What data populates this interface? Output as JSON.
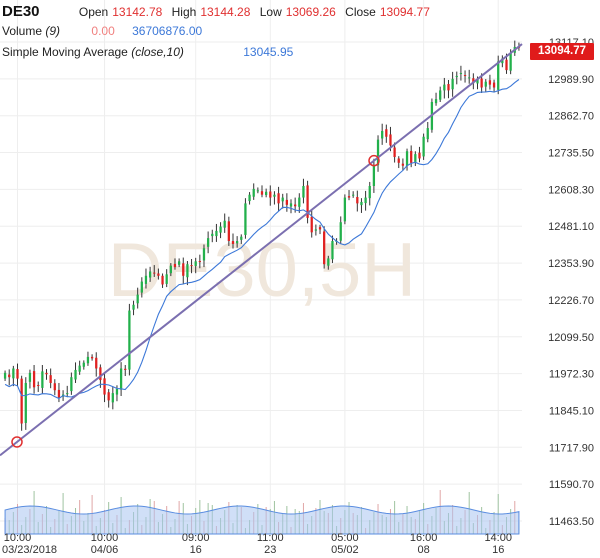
{
  "symbol": "DE30",
  "ohlc": {
    "open_label": "Open",
    "open": "13142.78",
    "high_label": "High",
    "high": "13144.28",
    "low_label": "Low",
    "low": "13069.26",
    "close_label": "Close",
    "close": "13094.77"
  },
  "volume": {
    "label": "Volume",
    "param": "(9)",
    "value1": "0.00",
    "value2": "36706876.00"
  },
  "sma": {
    "label": "Simple Moving Average",
    "param": "(close,10)",
    "value": "13045.95"
  },
  "watermark": "DE30,5H",
  "last_price_label": "13094.77",
  "colors": {
    "up": "#22b04b",
    "down": "#e02020",
    "sma": "#3c78d8",
    "trendline": "#7b6fb0",
    "volume_fill": "#a9c4f0",
    "tag": "#e01b1b",
    "grid": "#eeeeee"
  },
  "chart_data": {
    "type": "candlestick",
    "title": "DE30",
    "timeframe": "5H",
    "y_ticks": [
      "13117.10",
      "12989.90",
      "12862.70",
      "12735.50",
      "12608.30",
      "12481.10",
      "12353.90",
      "12226.70",
      "12099.50",
      "11972.30",
      "11845.10",
      "11717.90",
      "11590.70",
      "11463.50"
    ],
    "y_range": [
      11463.5,
      13117.1
    ],
    "x_ticks": [
      {
        "time": "10:00",
        "date": "03/23/2018"
      },
      {
        "time": "10:00",
        "date": "04/06"
      },
      {
        "time": "09:00",
        "date": "16"
      },
      {
        "time": "11:00",
        "date": "23"
      },
      {
        "time": "05:00",
        "date": "05/02"
      },
      {
        "time": "16:00",
        "date": "08"
      },
      {
        "time": "14:00",
        "date": "16"
      }
    ],
    "last_ohlc": {
      "open": 13142.78,
      "high": 13144.28,
      "low": 13069.26,
      "close": 13094.77
    },
    "sma_period": 10,
    "sma_last": 13045.95,
    "trendline": {
      "start": 11730,
      "end": 13110
    },
    "closes": [
      11975,
      11960,
      11990,
      11955,
      11800,
      11940,
      11975,
      11925,
      11930,
      11980,
      11970,
      11940,
      11915,
      11890,
      11900,
      11905,
      11960,
      11985,
      12000,
      12010,
      12030,
      12025,
      11990,
      11950,
      11900,
      11880,
      11905,
      11920,
      11990,
      11985,
      12190,
      12210,
      12245,
      12290,
      12310,
      12325,
      12320,
      12310,
      12280,
      12315,
      12345,
      12340,
      12360,
      12310,
      12350,
      12345,
      12360,
      12360,
      12405,
      12440,
      12455,
      12465,
      12480,
      12500,
      12430,
      12420,
      12430,
      12445,
      12560,
      12590,
      12610,
      12605,
      12590,
      12600,
      12580,
      12590,
      12560,
      12580,
      12555,
      12560,
      12550,
      12580,
      12620,
      12510,
      12460,
      12470,
      12470,
      12350,
      12370,
      12430,
      12430,
      12495,
      12580,
      12580,
      12590,
      12560,
      12565,
      12580,
      12620,
      12690,
      12780,
      12810,
      12790,
      12760,
      12720,
      12700,
      12690,
      12740,
      12700,
      12730,
      12715,
      12790,
      12820,
      12910,
      12920,
      12950,
      12970,
      12950,
      12990,
      13000,
      13010,
      13000,
      12995,
      12975,
      12990,
      12960,
      12980,
      12970,
      12960,
      13050,
      13060,
      13020,
      13080,
      13100,
      13097
    ]
  }
}
